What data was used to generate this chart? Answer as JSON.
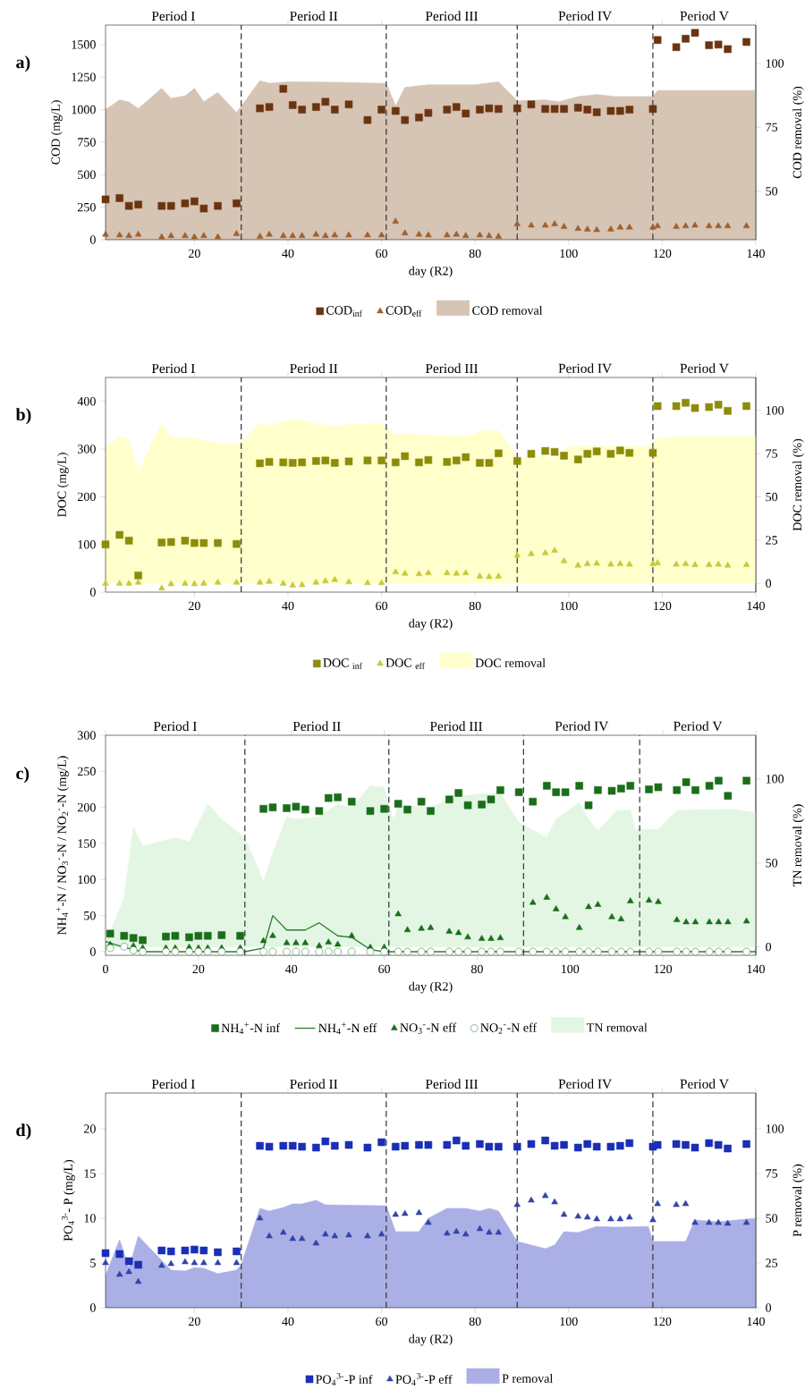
{
  "chart_data": [
    {
      "type": "scatter",
      "title": "a)",
      "xlabel": "day (R2)",
      "ylabel": "COD (mg/L)",
      "y2label": "COD removal (%)",
      "annotations": [
        "Period I",
        "Period II",
        "Period III",
        "Period IV",
        "Period V"
      ],
      "xlim": [
        1,
        140
      ],
      "xticks": [
        20,
        40,
        60,
        80,
        100,
        120,
        140
      ],
      "ylim": [
        0,
        1650
      ],
      "yticks": [
        0,
        250,
        500,
        750,
        1000,
        1250,
        1500
      ],
      "y2lim": [
        31,
        115
      ],
      "y2ticks": [
        50,
        75,
        100
      ],
      "legend": "bottom",
      "ref_lines": [
        {
          "axis": "x",
          "value": 30,
          "line_style": "dashed"
        },
        {
          "axis": "x",
          "value": 61,
          "line_style": "dashed"
        },
        {
          "axis": "x",
          "value": 89,
          "line_style": "dashed"
        },
        {
          "axis": "x",
          "value": 118,
          "line_style": "dashed"
        }
      ],
      "x": [
        1,
        4,
        6,
        8,
        13,
        15,
        18,
        20,
        22,
        25,
        29,
        34,
        36,
        39,
        41,
        43,
        46,
        48,
        50,
        53,
        57,
        60,
        63,
        65,
        68,
        70,
        74,
        76,
        78,
        81,
        83,
        85,
        89,
        92,
        95,
        97,
        99,
        102,
        104,
        106,
        109,
        111,
        113,
        118,
        119,
        123,
        125,
        127,
        130,
        132,
        134,
        138
      ],
      "series": [
        {
          "name": "COD$_{inf}$",
          "color": "#6b3410",
          "marker": "square",
          "values": [
            310,
            320,
            260,
            270,
            260,
            260,
            280,
            295,
            240,
            260,
            280,
            1010,
            1020,
            1160,
            1035,
            1000,
            1020,
            1060,
            1000,
            1040,
            920,
            1000,
            990,
            920,
            940,
            975,
            1000,
            1020,
            970,
            1000,
            1010,
            1005,
            1010,
            1040,
            1005,
            1005,
            1005,
            1015,
            1000,
            980,
            990,
            990,
            1000,
            1005,
            1535,
            1480,
            1545,
            1590,
            1495,
            1500,
            1465,
            1520
          ]
        },
        {
          "name": "COD$_{eff}$",
          "color": "#a0612d",
          "marker": "triangle",
          "values": [
            40,
            35,
            30,
            40,
            20,
            30,
            30,
            20,
            30,
            20,
            45,
            25,
            40,
            30,
            30,
            30,
            40,
            30,
            35,
            35,
            35,
            35,
            140,
            50,
            40,
            35,
            35,
            40,
            30,
            35,
            30,
            25,
            120,
            110,
            110,
            120,
            100,
            85,
            80,
            75,
            80,
            95,
            95,
            95,
            105,
            100,
            105,
            110,
            105,
            105,
            105,
            105
          ]
        },
        {
          "name": "COD removal",
          "type": "area",
          "axis": "y2",
          "color": "#d6c4b5",
          "x": [
            1,
            4,
            6,
            8,
            13,
            15,
            18,
            20,
            22,
            25,
            29,
            34,
            36,
            40,
            50,
            60,
            61,
            63,
            65,
            70,
            80,
            85,
            89,
            95,
            98,
            102,
            106,
            110,
            118,
            119,
            140
          ],
          "values": [
            81.9,
            85.7,
            84.9,
            82.3,
            90.2,
            86.3,
            87.3,
            90.2,
            85,
            88.6,
            80.7,
            93.2,
            92.2,
            92.8,
            92.6,
            92.2,
            92.2,
            83.3,
            90.6,
            91.6,
            91.6,
            92.8,
            85.3,
            85.7,
            85,
            87,
            87.8,
            87,
            87,
            89.4,
            89.4
          ]
        }
      ]
    },
    {
      "type": "scatter",
      "title": "b)",
      "xlabel": "day (R2)",
      "ylabel": "DOC (mg/L)",
      "y2label": "DOC removal (%)",
      "annotations": [
        "Period I",
        "Period II",
        "Period III",
        "Period IV",
        "Period V"
      ],
      "xlim": [
        1,
        140
      ],
      "xticks": [
        20,
        40,
        60,
        80,
        100,
        120,
        140
      ],
      "ylim": [
        0,
        450
      ],
      "yticks": [
        0,
        100,
        200,
        300,
        400
      ],
      "y2lim": [
        -5,
        119
      ],
      "y2ticks": [
        0,
        25,
        50,
        75,
        100
      ],
      "legend": "bottom",
      "ref_lines": [
        {
          "axis": "x",
          "value": 30,
          "line_style": "dashed"
        },
        {
          "axis": "x",
          "value": 61,
          "line_style": "dashed"
        },
        {
          "axis": "x",
          "value": 89,
          "line_style": "dashed"
        },
        {
          "axis": "x",
          "value": 118,
          "line_style": "dashed"
        }
      ],
      "x": [
        1,
        4,
        6,
        8,
        13,
        15,
        18,
        20,
        22,
        25,
        29,
        34,
        36,
        39,
        41,
        43,
        46,
        48,
        50,
        53,
        57,
        60,
        63,
        65,
        68,
        70,
        74,
        76,
        78,
        81,
        83,
        85,
        89,
        92,
        95,
        97,
        99,
        102,
        104,
        106,
        109,
        111,
        113,
        118,
        119,
        123,
        125,
        127,
        130,
        132,
        134,
        138
      ],
      "series": [
        {
          "name": "DOC $_{inf}$",
          "color": "#8c8c0a",
          "marker": "square",
          "values": [
            100,
            120,
            108,
            35,
            104,
            105,
            108,
            103,
            103,
            103,
            101,
            270,
            273,
            272,
            271,
            272,
            275,
            276,
            271,
            274,
            276,
            276,
            272,
            285,
            272,
            277,
            273,
            276,
            283,
            271,
            271,
            291,
            275,
            290,
            296,
            294,
            286,
            278,
            290,
            295,
            290,
            297,
            292,
            292,
            390,
            390,
            397,
            386,
            388,
            393,
            380,
            390
          ]
        },
        {
          "name": "DOC $_{eff}$",
          "color": "#c8c83c",
          "marker": "triangle",
          "values": [
            18,
            18,
            18,
            20,
            8,
            17,
            18,
            17,
            18,
            20,
            20,
            20,
            22,
            18,
            14,
            15,
            20,
            23,
            26,
            21,
            19,
            19,
            42,
            39,
            38,
            40,
            40,
            39,
            40,
            33,
            32,
            33,
            77,
            80,
            82,
            87,
            65,
            56,
            59,
            60,
            58,
            59,
            58,
            59,
            61,
            58,
            59,
            57,
            57,
            58,
            56,
            57
          ]
        },
        {
          "name": "DOC removal",
          "type": "area",
          "axis": "y2",
          "color": "#ffffcc",
          "x": [
            1,
            4,
            6,
            8,
            13,
            15,
            20,
            25,
            29,
            30,
            34,
            36,
            41,
            50,
            53,
            60,
            61,
            63,
            65,
            75,
            80,
            81,
            85,
            89,
            95,
            97,
            100,
            105,
            117,
            119,
            125,
            140
          ],
          "values": [
            79.4,
            84.5,
            83,
            64.5,
            92.5,
            84.5,
            83.9,
            80.9,
            80.6,
            81.5,
            92.5,
            91.3,
            94.9,
            90.4,
            91.9,
            92.5,
            90.4,
            85.4,
            86.3,
            85,
            85.7,
            88,
            88.4,
            72.5,
            73.4,
            71.6,
            79.1,
            79.4,
            79.1,
            83.9,
            84.8,
            85
          ]
        }
      ]
    },
    {
      "type": "scatter",
      "title": "c)",
      "xlabel": "day (R2)",
      "ylabel": "NH$_{4}$$^{+}$-N / NO$_{3}$$^{-}$-N / NO$_{2}$$^{-}$-N (mg/L)",
      "y2label": "TN removal (%)",
      "annotations": [
        "Period I",
        "Period II",
        "Period III",
        "Period IV",
        "Period V"
      ],
      "xlim": [
        0,
        140
      ],
      "xticks": [
        0,
        20,
        40,
        60,
        80,
        100,
        120,
        140
      ],
      "ylim": [
        -5,
        300
      ],
      "yticks": [
        0,
        50,
        100,
        150,
        200,
        250,
        300
      ],
      "y2lim": [
        -5,
        126
      ],
      "y2ticks": [
        0,
        50,
        100
      ],
      "legend": "bottom",
      "ref_lines": [
        {
          "axis": "x",
          "value": 30,
          "line_style": "dashed"
        },
        {
          "axis": "x",
          "value": 61,
          "line_style": "dashed"
        },
        {
          "axis": "x",
          "value": 90,
          "line_style": "dashed"
        },
        {
          "axis": "x",
          "value": 115,
          "line_style": "dashed"
        }
      ],
      "x": [
        1,
        4,
        6,
        8,
        13,
        15,
        18,
        20,
        22,
        25,
        29,
        34,
        36,
        39,
        41,
        43,
        46,
        48,
        50,
        53,
        57,
        60,
        63,
        65,
        68,
        70,
        74,
        76,
        78,
        81,
        83,
        85,
        89,
        92,
        95,
        97,
        99,
        102,
        104,
        106,
        109,
        111,
        113,
        117,
        119,
        123,
        125,
        127,
        130,
        132,
        134,
        138
      ],
      "series": [
        {
          "name": "NH$_{4}$$^{+}$-N inf",
          "color": "#1a6e1a",
          "marker": "square",
          "values": [
            25,
            22,
            19,
            16,
            21,
            22,
            20,
            22,
            22,
            23,
            22,
            198,
            200,
            199,
            201,
            197,
            195,
            213,
            214,
            208,
            195,
            198,
            205,
            197,
            208,
            195,
            211,
            220,
            203,
            204,
            211,
            224,
            221,
            208,
            230,
            221,
            221,
            230,
            203,
            224,
            223,
            226,
            230,
            225,
            228,
            224,
            235,
            224,
            230,
            237,
            216,
            237
          ]
        },
        {
          "name": "NH$_{4}$$^{+}$-N eff",
          "type": "line",
          "color": "#2e7d2e",
          "marker": "none",
          "x": [
            0,
            4,
            8,
            20,
            30,
            34,
            36,
            39,
            41,
            43,
            46,
            50,
            53,
            57,
            60,
            70,
            140
          ],
          "values": [
            14,
            6,
            0,
            0,
            0,
            5,
            50,
            30,
            30,
            30,
            40,
            22,
            20,
            3,
            0,
            0,
            0
          ]
        },
        {
          "name": "NO$_{3}$$^{-}$-N eff",
          "color": "#1a6e1a",
          "marker": "triangle",
          "values": [
            10,
            null,
            8,
            5,
            5,
            5,
            6,
            5,
            5,
            5,
            5,
            15,
            22,
            12,
            12,
            12,
            8,
            13,
            10,
            22,
            6,
            6,
            52,
            30,
            32,
            33,
            28,
            26,
            20,
            18,
            18,
            19,
            null,
            68,
            75,
            59,
            48,
            33,
            62,
            65,
            48,
            45,
            70,
            71,
            69,
            44,
            41,
            41,
            41,
            41,
            41,
            42
          ]
        },
        {
          "name": "NO$_{2}$$^{-}$-N eff",
          "color": "#2e7d2e",
          "marker": "circle",
          "values": [
            5,
            7,
            2,
            0,
            0,
            0,
            0,
            0,
            0,
            0,
            0,
            0,
            0,
            0,
            0,
            0,
            0,
            0,
            0,
            0,
            0,
            0,
            0,
            0,
            0,
            0,
            0,
            0,
            0,
            0,
            0,
            0,
            0,
            0,
            0,
            0,
            0,
            0,
            0,
            0,
            0,
            0,
            0,
            0,
            0,
            0,
            0,
            0,
            0,
            0,
            0,
            0
          ]
        },
        {
          "name": "TN removal",
          "type": "area",
          "axis": "y2",
          "color": "#e3f6e3",
          "x": [
            0,
            4,
            6,
            8,
            15,
            18,
            22,
            25,
            30,
            34,
            36,
            39,
            41,
            46,
            50,
            53,
            57,
            60,
            62,
            63,
            65,
            70,
            75,
            80,
            85,
            89,
            95,
            97,
            102,
            104,
            106,
            110,
            113,
            114,
            119,
            123,
            126,
            135,
            140
          ],
          "values": [
            2.5,
            29,
            71,
            60,
            65,
            62.5,
            85,
            76,
            65,
            39,
            55.6,
            77.5,
            76,
            77.5,
            85,
            83,
            96,
            95,
            75,
            84,
            84,
            83,
            89,
            91,
            91.5,
            74,
            65,
            76,
            86,
            76,
            69,
            81,
            81.5,
            70,
            70,
            81,
            81.5,
            82,
            80
          ]
        }
      ]
    },
    {
      "type": "scatter",
      "title": "d)",
      "xlabel": "day (R2)",
      "ylabel": "PO$_{4}$$^{3-}$- P (mg/L)",
      "y2label": "P removal (%)",
      "annotations": [
        "Period I",
        "Period II",
        "Period III",
        "Period IV",
        "Period V"
      ],
      "xlim": [
        1,
        140
      ],
      "xticks": [
        20,
        40,
        60,
        80,
        100,
        120,
        140
      ],
      "ylim": [
        0,
        24
      ],
      "yticks": [
        0,
        5,
        10,
        15,
        20
      ],
      "y2lim": [
        0,
        120
      ],
      "y2ticks": [
        0,
        25,
        50,
        75,
        100
      ],
      "legend": "bottom",
      "ref_lines": [
        {
          "axis": "x",
          "value": 30,
          "line_style": "dashed"
        },
        {
          "axis": "x",
          "value": 61,
          "line_style": "dashed"
        },
        {
          "axis": "x",
          "value": 89,
          "line_style": "dashed"
        },
        {
          "axis": "x",
          "value": 118,
          "line_style": "dashed"
        }
      ],
      "x": [
        1,
        4,
        6,
        8,
        13,
        15,
        18,
        20,
        22,
        25,
        29,
        34,
        36,
        39,
        41,
        43,
        46,
        48,
        50,
        53,
        57,
        60,
        63,
        65,
        68,
        70,
        74,
        76,
        78,
        81,
        83,
        85,
        89,
        92,
        95,
        97,
        99,
        102,
        104,
        106,
        109,
        111,
        113,
        118,
        119,
        123,
        125,
        127,
        130,
        132,
        134,
        138
      ],
      "series": [
        {
          "name": "PO$_{4}$$^{3-}$-P inf",
          "color": "#1a2fb5",
          "marker": "square",
          "values": [
            6.1,
            6.0,
            5.2,
            4.8,
            6.4,
            6.3,
            6.4,
            6.5,
            6.4,
            6.2,
            6.3,
            18.1,
            18.0,
            18.1,
            18.1,
            18.0,
            17.9,
            18.6,
            18.1,
            18.2,
            17.9,
            18.5,
            18.0,
            18.1,
            18.2,
            18.2,
            18.2,
            18.7,
            18.1,
            18.3,
            18.0,
            18.0,
            18.0,
            18.3,
            18.7,
            18.1,
            18.2,
            17.9,
            18.3,
            18.0,
            18.0,
            18.1,
            18.4,
            18.0,
            18.2,
            18.3,
            18.2,
            17.9,
            18.4,
            18.2,
            17.8,
            18.3
          ]
        },
        {
          "name": "PO$_{4}$$^{3-}$-P eff",
          "color": "#3344aa",
          "marker": "triangle",
          "values": [
            5.0,
            3.7,
            4.0,
            2.9,
            4.7,
            4.9,
            5.1,
            5.0,
            5.0,
            5.0,
            5.0,
            10.0,
            8.0,
            8.4,
            7.7,
            7.7,
            7.2,
            8.2,
            8.0,
            8.1,
            8.0,
            8.2,
            10.4,
            10.5,
            10.6,
            9.5,
            8.3,
            8.5,
            8.2,
            8.8,
            8.4,
            8.4,
            11.5,
            12.0,
            12.5,
            11.8,
            10.4,
            10.2,
            10.1,
            9.9,
            9.9,
            9.9,
            10.1,
            9.8,
            11.6,
            11.5,
            11.6,
            9.5,
            9.5,
            9.5,
            9.4,
            9.5
          ]
        },
        {
          "name": "P removal",
          "type": "area",
          "axis": "y2",
          "color": "#aab0e6",
          "x": [
            1,
            4,
            6,
            8,
            15,
            18,
            20,
            22,
            25,
            29,
            30,
            34,
            36,
            39,
            41,
            43,
            46,
            48,
            60,
            61,
            63,
            68,
            70,
            74,
            78,
            81,
            83,
            85,
            89,
            95,
            97,
            99,
            102,
            106,
            110,
            117,
            118,
            125,
            127,
            132,
            140
          ],
          "values": [
            18,
            38,
            22,
            40,
            21,
            20.5,
            22.4,
            22,
            19,
            21,
            24,
            55.5,
            54,
            56,
            58,
            58,
            60,
            57.5,
            57,
            57,
            42.5,
            42.5,
            50,
            55.5,
            55.5,
            54,
            55.5,
            54,
            37,
            33,
            35,
            42.5,
            42,
            45.4,
            45,
            45.4,
            37,
            37,
            49,
            48,
            50
          ]
        }
      ]
    }
  ]
}
